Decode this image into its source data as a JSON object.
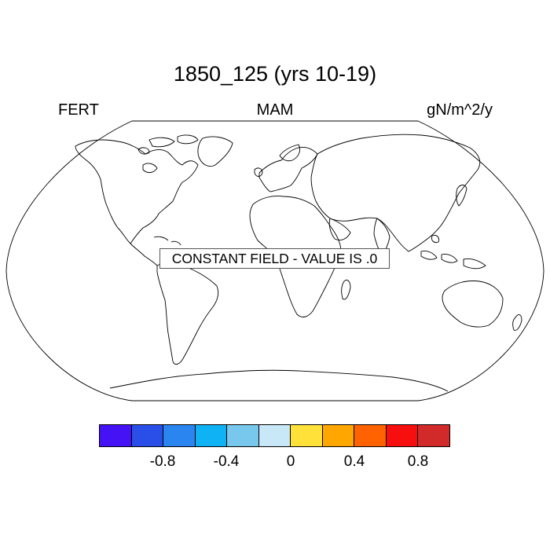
{
  "title": "1850_125 (yrs 10-19)",
  "left_label": "FERT",
  "center_label": "MAM",
  "right_label": "gN/m^2/y",
  "annotation": "CONSTANT FIELD - VALUE IS .0",
  "projection": "Robinson",
  "colorbar": {
    "colors": [
      "#4512f5",
      "#2a4fe8",
      "#2a85f0",
      "#0fb2f5",
      "#77c8ec",
      "#c8e7f7",
      "#ffe13a",
      "#ffa600",
      "#ff6200",
      "#f70f0f",
      "#d22a2a"
    ],
    "tick_labels": [
      "-0.8",
      "-0.4",
      "0",
      "0.4",
      "0.8"
    ]
  }
}
